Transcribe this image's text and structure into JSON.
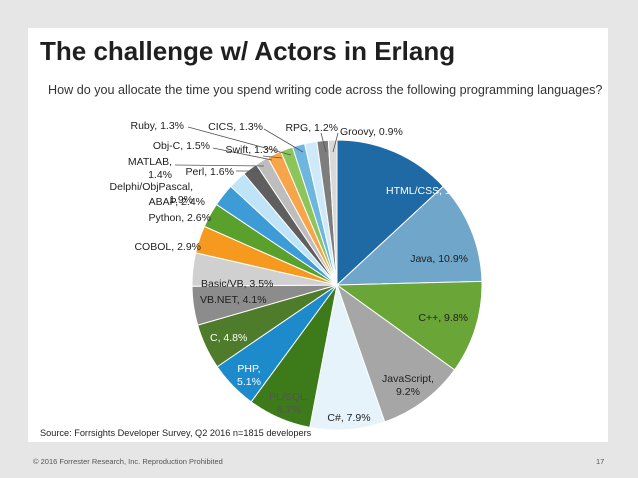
{
  "slide": {
    "title": "The challenge w/ Actors in Erlang",
    "subtitle": "How do you allocate the time you spend writing code across the following programming languages?",
    "source": "Source: Forrsights Developer Survey, Q2 2016 n=1815 developers",
    "footer_left": "© 2016 Forrester Research, Inc. Reproduction Prohibited",
    "page_number": "17"
  },
  "chart_data": {
    "type": "pie",
    "unit": "%",
    "slices": [
      {
        "label": "HTML/CSS",
        "value": 12.4,
        "display": "HTML/CSS, 12.4%",
        "color": "#1f6aa5"
      },
      {
        "label": "Java",
        "value": 10.9,
        "display": "Java, 10.9%",
        "color": "#6fa6c9"
      },
      {
        "label": "C++",
        "value": 9.8,
        "display": "C++, 9.8%",
        "color": "#6aa537"
      },
      {
        "label": "JavaScript",
        "value": 9.2,
        "display": "JavaScript,\n9.2%",
        "color": "#a6a6a6"
      },
      {
        "label": "C#",
        "value": 7.9,
        "display": "C#, 7.9%",
        "color": "#e6f3fa"
      },
      {
        "label": "PL/SQL",
        "value": 6.7,
        "display": "PL/SQL,\n6.7%",
        "color": "#3d7a1a"
      },
      {
        "label": "PHP",
        "value": 5.1,
        "display": "PHP,\n5.1%",
        "color": "#1c8acb"
      },
      {
        "label": "C",
        "value": 4.8,
        "display": "C, 4.8%",
        "color": "#4e7c2a"
      },
      {
        "label": "VB.NET",
        "value": 4.1,
        "display": "VB.NET, 4.1%",
        "color": "#8c8c8c"
      },
      {
        "label": "Basic/VB",
        "value": 3.5,
        "display": "Basic/VB, 3.5%",
        "color": "#d0d0d0"
      },
      {
        "label": "COBOL",
        "value": 2.9,
        "display": "COBOL, 2.9%",
        "color": "#f59a1f"
      },
      {
        "label": "Python",
        "value": 2.6,
        "display": "Python, 2.6%",
        "color": "#5aa02c"
      },
      {
        "label": "ABAP",
        "value": 2.4,
        "display": "ABAP, 2.4%",
        "color": "#3d9bd6"
      },
      {
        "label": "Delphi/ObjPascal",
        "value": 1.9,
        "display": "Delphi/ObjPascal,\n1.9%",
        "color": "#bfe3f7"
      },
      {
        "label": "Perl",
        "value": 1.6,
        "display": "Perl, 1.6%",
        "color": "#5f5f5f"
      },
      {
        "label": "MATLAB",
        "value": 1.4,
        "display": "MATLAB,\n1.4%",
        "color": "#bdbdbd"
      },
      {
        "label": "Obj-C",
        "value": 1.5,
        "display": "Obj-C, 1.5%",
        "color": "#f7a54a"
      },
      {
        "label": "Swift",
        "value": 1.3,
        "display": "Swift, 1.3%",
        "color": "#8cc65a"
      },
      {
        "label": "Ruby",
        "value": 1.3,
        "display": "Ruby, 1.3%",
        "color": "#6db6e0"
      },
      {
        "label": "CICS",
        "value": 1.3,
        "display": "CICS, 1.3%",
        "color": "#cfe9f8"
      },
      {
        "label": "RPG",
        "value": 1.2,
        "display": "RPG, 1.2%",
        "color": "#7d7d7d"
      },
      {
        "label": "Groovy",
        "value": 0.9,
        "display": "Groovy, 0.9%",
        "color": "#d9d9d9"
      }
    ]
  }
}
